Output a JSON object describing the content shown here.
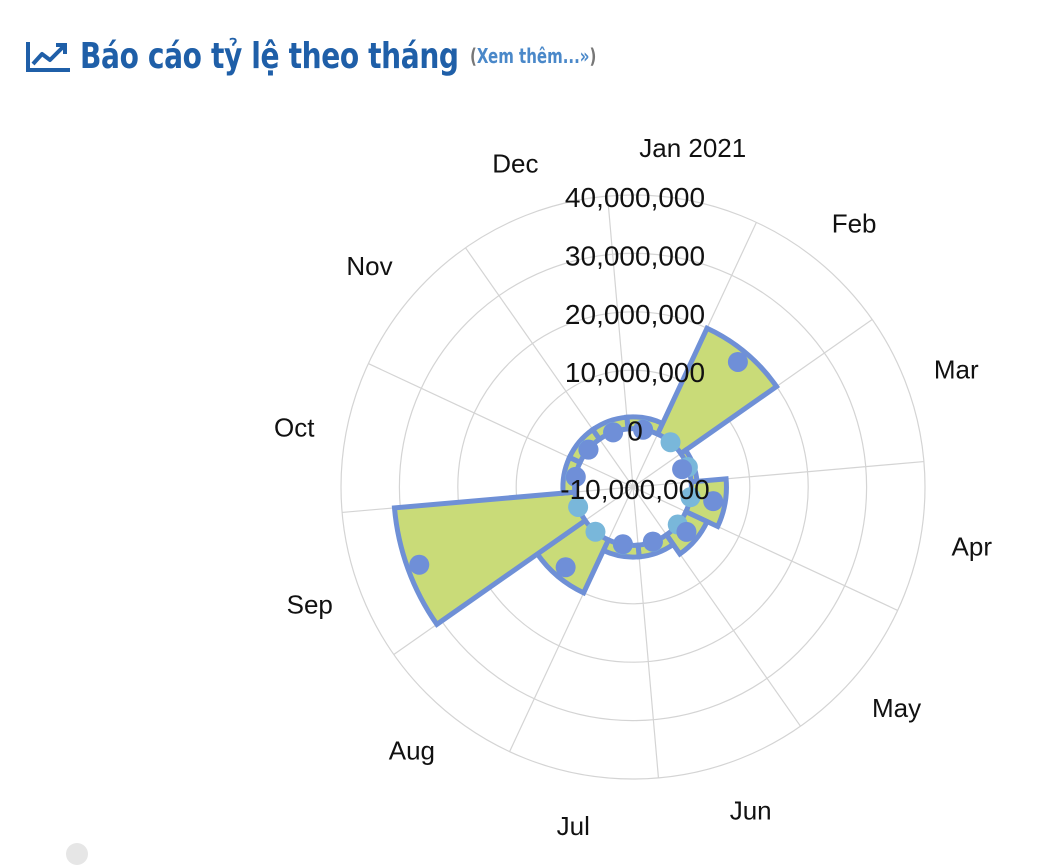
{
  "header": {
    "title": "Báo cáo tỷ lệ theo tháng",
    "more_label": "Xem thêm...»",
    "paren_open": "(",
    "paren_close": ")",
    "icon": "line-chart-icon",
    "title_color": "#1f5fa8",
    "link_color": "#4a88c9"
  },
  "chart_data": {
    "type": "polar-area",
    "categories": [
      "Jan 2021",
      "Feb",
      "Mar",
      "Apr",
      "May",
      "Jun",
      "Jul",
      "Aug",
      "Sep",
      "Oct",
      "Nov",
      "Dec"
    ],
    "series": [
      {
        "type": "area",
        "values": [
          2000000,
          20000000,
          1000000,
          6000000,
          4000000,
          2000000,
          2000000,
          10000000,
          31000000,
          2000000,
          2000000,
          2000000
        ]
      },
      {
        "type": "scatter",
        "values": [
          0,
          0,
          0,
          0,
          0,
          0,
          0,
          0,
          0,
          0,
          0,
          0
        ]
      }
    ],
    "tick_labels": [
      "-10,000,000",
      "0",
      "10,000,000",
      "20,000,000",
      "30,000,000",
      "40,000,000"
    ],
    "rlim": [
      -10000000,
      40000000
    ],
    "colors": {
      "fill": "#c9db78",
      "stroke": "#6f90d6",
      "outer_dot": "#6f8fd8",
      "inner_dot": "#79b7da",
      "grid": "#d4d4d4"
    },
    "grid": true,
    "legend": "none"
  }
}
